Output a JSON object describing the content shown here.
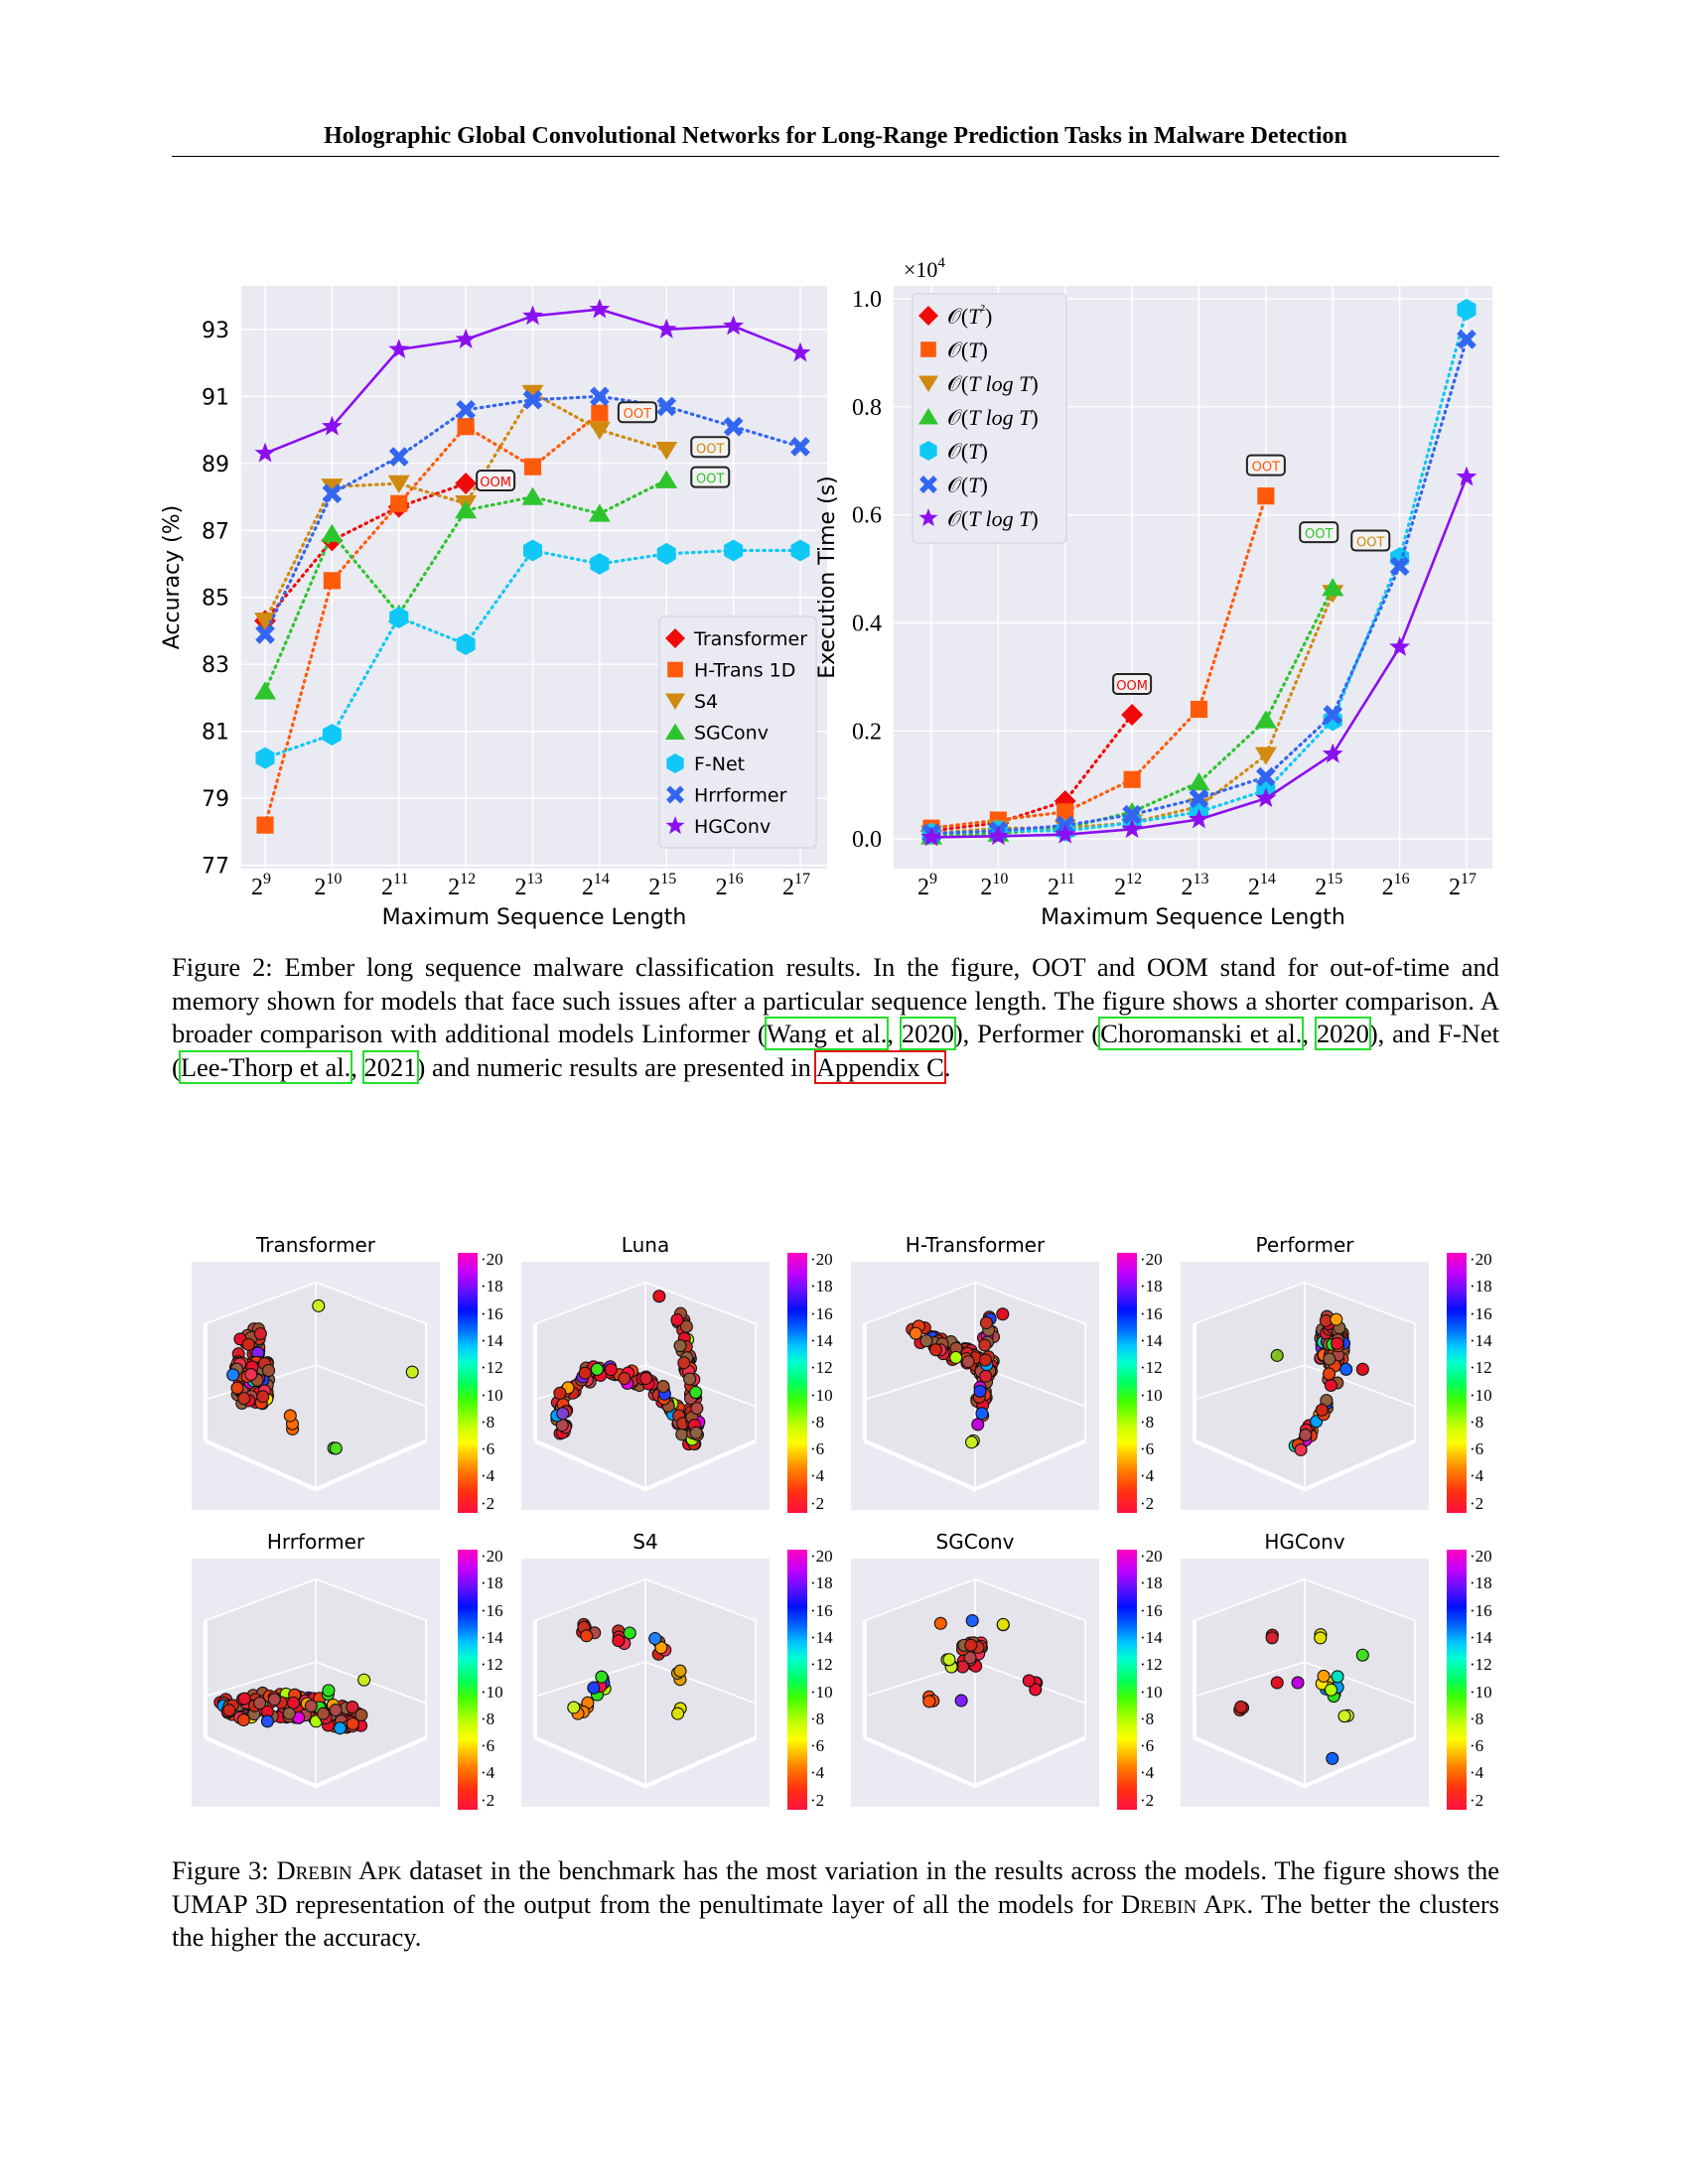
{
  "header": {
    "title": "Holographic Global Convolutional Networks for Long-Range Prediction Tasks in Malware Detection"
  },
  "chart_data": [
    {
      "type": "line",
      "title": "",
      "xlabel": "Maximum Sequence Length",
      "ylabel": "Accuracy (%)",
      "x_ticks": [
        "9",
        "10",
        "11",
        "12",
        "13",
        "14",
        "15",
        "16",
        "17"
      ],
      "x_tick_base": "2",
      "ylim": [
        76.9,
        94.3
      ],
      "y_ticks": [
        "77",
        "79",
        "81",
        "83",
        "85",
        "87",
        "89",
        "91",
        "93"
      ],
      "grid": true,
      "legend_position": "lower-right",
      "series": [
        {
          "name": "Transformer",
          "marker": "diamond",
          "color": "#f00a0a",
          "style": "dotted",
          "values": [
            84.3,
            86.7,
            87.7,
            88.4
          ]
        },
        {
          "name": "H-Trans 1D",
          "marker": "square",
          "color": "#ff5a0a",
          "style": "dotted",
          "values": [
            78.2,
            85.5,
            87.8,
            90.1,
            88.9,
            90.5
          ]
        },
        {
          "name": "S4",
          "marker": "triangle-down",
          "color": "#d08a10",
          "style": "dotted",
          "values": [
            84.3,
            88.3,
            88.4,
            87.8,
            91.1,
            90.0,
            89.4
          ]
        },
        {
          "name": "SGConv",
          "marker": "triangle-up",
          "color": "#2ec42e",
          "style": "dotted",
          "values": [
            82.2,
            86.9,
            84.5,
            87.6,
            88.0,
            87.5,
            88.5
          ]
        },
        {
          "name": "F-Net",
          "marker": "hexagon",
          "color": "#10c8f5",
          "style": "dotted",
          "values": [
            80.2,
            80.9,
            84.4,
            83.6,
            86.4,
            86.0,
            86.3,
            86.4,
            86.4
          ]
        },
        {
          "name": "Hrrformer",
          "marker": "x",
          "color": "#3366f0",
          "style": "dotted",
          "values": [
            83.9,
            88.1,
            89.2,
            90.6,
            90.9,
            91.0,
            90.7,
            90.1,
            89.5
          ]
        },
        {
          "name": "HGConv",
          "marker": "star",
          "color": "#8a10f0",
          "style": "solid",
          "values": [
            89.3,
            90.1,
            92.4,
            92.7,
            93.4,
            93.6,
            93.0,
            93.1,
            92.3
          ]
        }
      ],
      "annotations": [
        {
          "text": "OOM",
          "series": 0
        },
        {
          "text": "OOT",
          "series": 1
        },
        {
          "text": "OOT",
          "series": 2
        },
        {
          "text": "OOT",
          "series": 3
        }
      ]
    },
    {
      "type": "line",
      "title": "",
      "xlabel": "Maximum Sequence Length",
      "ylabel": "Execution Time (s)",
      "y_multiplier": "×10",
      "y_multiplier_exp": "4",
      "x_ticks": [
        "9",
        "10",
        "11",
        "12",
        "13",
        "14",
        "15",
        "16",
        "17"
      ],
      "x_tick_base": "2",
      "ylim": [
        -0.055,
        1.024
      ],
      "y_ticks": [
        "0.0",
        "0.2",
        "0.4",
        "0.6",
        "0.8",
        "1.0"
      ],
      "grid": true,
      "legend_position": "upper-left",
      "series": [
        {
          "name": "O(T²)",
          "legend": [
            "𝒪(",
            "T",
            "²",
            ")"
          ],
          "marker": "diamond",
          "color": "#f00a0a",
          "style": "dotted",
          "values": [
            0.015,
            0.03,
            0.07,
            0.23
          ]
        },
        {
          "name": "O(T)",
          "legend": [
            "𝒪(",
            "T",
            "",
            ")"
          ],
          "marker": "square",
          "color": "#ff5a0a",
          "style": "dotted",
          "values": [
            0.02,
            0.035,
            0.05,
            0.11,
            0.24,
            0.635
          ]
        },
        {
          "name": "O(T log T)",
          "legend": [
            "𝒪(",
            "T  log T",
            "",
            ")"
          ],
          "marker": "triangle-down",
          "color": "#d08a10",
          "style": "dotted",
          "values": [
            0.01,
            0.02,
            0.02,
            0.03,
            0.06,
            0.155,
            0.455
          ]
        },
        {
          "name": "O(T log T)",
          "legend": [
            "𝒪(",
            "T  log T",
            "",
            ")"
          ],
          "marker": "triangle-up",
          "color": "#2ec42e",
          "style": "dotted",
          "values": [
            0.005,
            0.01,
            0.02,
            0.05,
            0.105,
            0.22,
            0.465
          ]
        },
        {
          "name": "O(T)",
          "legend": [
            "𝒪(",
            "T",
            "",
            ")"
          ],
          "marker": "hexagon",
          "color": "#10c8f5",
          "style": "dotted",
          "values": [
            0.01,
            0.015,
            0.015,
            0.03,
            0.05,
            0.09,
            0.22,
            0.52,
            0.98
          ]
        },
        {
          "name": "O(T)",
          "legend": [
            "𝒪(",
            "T",
            "",
            ")"
          ],
          "marker": "x",
          "color": "#3366f0",
          "style": "dotted",
          "values": [
            0.01,
            0.015,
            0.025,
            0.045,
            0.075,
            0.115,
            0.23,
            0.505,
            0.925
          ]
        },
        {
          "name": "O(T log T)",
          "legend": [
            "𝒪(",
            "T  log T",
            "",
            ")"
          ],
          "marker": "star",
          "color": "#8a10f0",
          "style": "solid",
          "values": [
            0.003,
            0.005,
            0.008,
            0.018,
            0.036,
            0.075,
            0.157,
            0.355,
            0.67
          ]
        }
      ],
      "annotations": [
        {
          "text": "OOM",
          "series": 0
        },
        {
          "text": "OOT",
          "series": 1
        },
        {
          "text": "OOT",
          "series": 3
        },
        {
          "text": "OOT",
          "series": 2
        }
      ]
    }
  ],
  "figure2_caption": [
    {
      "text": "Figure 2: Ember long sequence malware classification results. In the figure, OOT and OOM stand for out-of-time and memory shown for models that face such issues after a particular sequence length. The figure shows a shorter comparison. A broader comparison with additional models Linformer (",
      "link": null
    },
    {
      "text": "Wang et al.",
      "link": "green"
    },
    {
      "text": ", ",
      "link": null
    },
    {
      "text": "2020",
      "link": "green"
    },
    {
      "text": "), Performer (",
      "link": null
    },
    {
      "text": "Choromanski et al.",
      "link": "green"
    },
    {
      "text": ", ",
      "link": null
    },
    {
      "text": "2020",
      "link": "green"
    },
    {
      "text": "), and F-Net (",
      "link": null
    },
    {
      "text": "Lee-Thorp et al.",
      "link": "green"
    },
    {
      "text": ", ",
      "link": null
    },
    {
      "text": "2021",
      "link": "green"
    },
    {
      "text": ") and numeric results are presented in ",
      "link": null
    },
    {
      "text": "Appendix C",
      "link": "red"
    },
    {
      "text": ".",
      "link": null
    }
  ],
  "umap": {
    "panels": [
      "Transformer",
      "Luna",
      "H-Transformer",
      "Performer",
      "Hrrformer",
      "S4",
      "SGConv",
      "HGConv"
    ],
    "colorbar_ticks": [
      "20",
      "18",
      "16",
      "14",
      "12",
      "10",
      "8",
      "6",
      "4",
      "2"
    ]
  },
  "figure3_caption": {
    "p1": "Figure 3: ",
    "sc1": "Drebin Apk",
    "p2": " dataset in the benchmark has the most variation in the results across the models. The figure shows the UMAP 3D representation of the output from the penultimate layer of all the models for ",
    "sc2": "Drebin Apk",
    "p3": ". The better the clusters the higher the accuracy."
  }
}
